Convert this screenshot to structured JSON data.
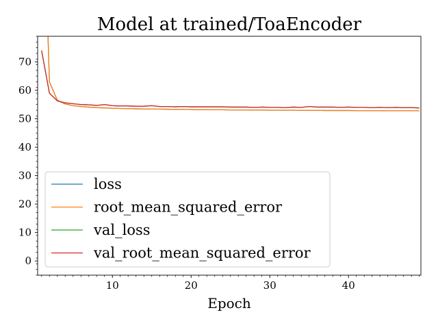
{
  "chart_data": {
    "type": "line",
    "title": "Model at trained/ToaEncoder",
    "xlabel": "Epoch",
    "ylabel": "",
    "xlim": [
      0.5,
      49.2
    ],
    "ylim": [
      -5,
      79
    ],
    "xticks": [
      10,
      20,
      30,
      40
    ],
    "yticks": [
      0,
      10,
      20,
      30,
      40,
      50,
      60,
      70
    ],
    "grid": false,
    "legend_position": "lower-left",
    "series": [
      {
        "name": "loss",
        "color": "#1f77b4",
        "x": [
          1,
          2,
          3,
          4,
          5,
          6,
          7,
          8,
          9,
          10,
          11,
          12,
          13,
          14,
          15,
          16,
          17,
          18,
          19,
          20,
          21,
          22,
          23,
          24,
          25,
          26,
          27,
          28,
          29,
          30,
          31,
          32,
          33,
          34,
          35,
          36,
          37,
          38,
          39,
          40,
          41,
          42,
          43,
          44,
          45,
          46,
          47,
          48,
          49
        ],
        "y": [
          150,
          63,
          56.5,
          55.2,
          54.6,
          54.3,
          54.1,
          53.9,
          53.8,
          53.7,
          53.6,
          53.55,
          53.5,
          53.45,
          53.4,
          53.4,
          53.35,
          53.3,
          53.3,
          53.25,
          53.2,
          53.2,
          53.15,
          53.15,
          53.1,
          53.1,
          53.1,
          53.05,
          53.05,
          53.0,
          53.0,
          53.0,
          53.0,
          52.95,
          52.95,
          52.95,
          52.9,
          52.9,
          52.9,
          52.9,
          52.85,
          52.85,
          52.85,
          52.85,
          52.8,
          52.8,
          52.8,
          52.8,
          52.8
        ]
      },
      {
        "name": "root_mean_squared_error",
        "color": "#ff7f0e",
        "x": [
          1,
          2,
          3,
          4,
          5,
          6,
          7,
          8,
          9,
          10,
          11,
          12,
          13,
          14,
          15,
          16,
          17,
          18,
          19,
          20,
          21,
          22,
          23,
          24,
          25,
          26,
          27,
          28,
          29,
          30,
          31,
          32,
          33,
          34,
          35,
          36,
          37,
          38,
          39,
          40,
          41,
          42,
          43,
          44,
          45,
          46,
          47,
          48,
          49
        ],
        "y": [
          150,
          63,
          56.5,
          55.2,
          54.6,
          54.3,
          54.1,
          53.9,
          53.8,
          53.7,
          53.6,
          53.55,
          53.5,
          53.45,
          53.4,
          53.4,
          53.35,
          53.3,
          53.3,
          53.25,
          53.2,
          53.2,
          53.15,
          53.15,
          53.1,
          53.1,
          53.1,
          53.05,
          53.05,
          53.0,
          53.0,
          53.0,
          53.0,
          52.95,
          52.95,
          52.95,
          52.9,
          52.9,
          52.9,
          52.9,
          52.85,
          52.85,
          52.85,
          52.85,
          52.8,
          52.8,
          52.8,
          52.8,
          52.8
        ]
      },
      {
        "name": "val_loss",
        "color": "#2ca02c",
        "x": [
          1,
          2,
          3,
          4,
          5,
          6,
          7,
          8,
          9,
          10,
          11,
          12,
          13,
          14,
          15,
          16,
          17,
          18,
          19,
          20,
          21,
          22,
          23,
          24,
          25,
          26,
          27,
          28,
          29,
          30,
          31,
          32,
          33,
          34,
          35,
          36,
          37,
          38,
          39,
          40,
          41,
          42,
          43,
          44,
          45,
          46,
          47,
          48,
          49
        ],
        "y": [
          74,
          59,
          56.3,
          55.6,
          55.3,
          55.0,
          54.9,
          54.7,
          55.0,
          54.6,
          54.5,
          54.5,
          54.4,
          54.4,
          54.6,
          54.3,
          54.3,
          54.2,
          54.3,
          54.2,
          54.2,
          54.2,
          54.2,
          54.2,
          54.1,
          54.1,
          54.1,
          54.0,
          54.1,
          54.0,
          54.0,
          53.9,
          54.1,
          54.0,
          54.3,
          54.1,
          54.1,
          54.1,
          54.0,
          54.1,
          54.0,
          54.0,
          53.9,
          54.0,
          53.9,
          54.0,
          53.9,
          53.9,
          53.8
        ]
      },
      {
        "name": "val_root_mean_squared_error",
        "color": "#d62728",
        "x": [
          1,
          2,
          3,
          4,
          5,
          6,
          7,
          8,
          9,
          10,
          11,
          12,
          13,
          14,
          15,
          16,
          17,
          18,
          19,
          20,
          21,
          22,
          23,
          24,
          25,
          26,
          27,
          28,
          29,
          30,
          31,
          32,
          33,
          34,
          35,
          36,
          37,
          38,
          39,
          40,
          41,
          42,
          43,
          44,
          45,
          46,
          47,
          48,
          49
        ],
        "y": [
          74,
          59,
          56.3,
          55.6,
          55.3,
          55.0,
          54.9,
          54.7,
          55.0,
          54.6,
          54.5,
          54.5,
          54.4,
          54.4,
          54.6,
          54.3,
          54.3,
          54.2,
          54.3,
          54.2,
          54.2,
          54.2,
          54.2,
          54.2,
          54.1,
          54.1,
          54.1,
          54.0,
          54.1,
          54.0,
          54.0,
          53.9,
          54.1,
          54.0,
          54.3,
          54.1,
          54.1,
          54.1,
          54.0,
          54.1,
          54.0,
          54.0,
          53.9,
          54.0,
          53.9,
          54.0,
          53.9,
          53.9,
          53.8
        ]
      }
    ]
  }
}
